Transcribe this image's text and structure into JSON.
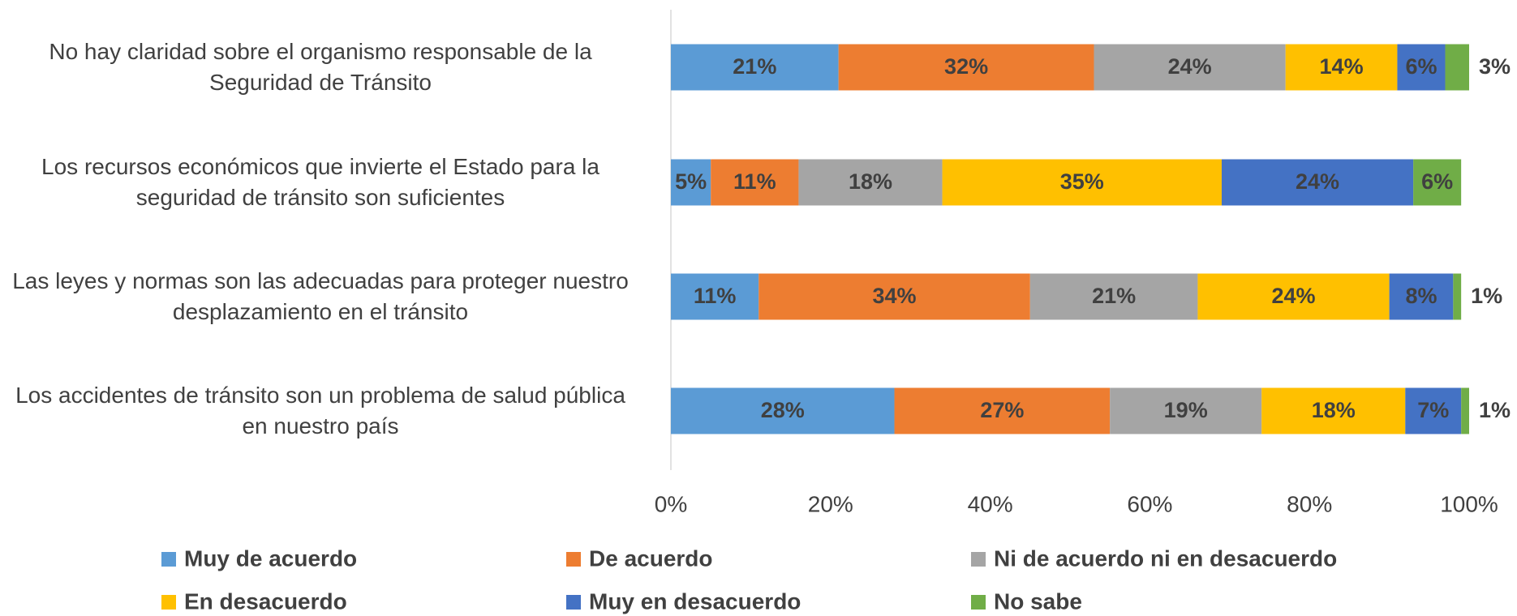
{
  "chart_data": {
    "type": "bar",
    "orientation": "horizontal",
    "stacked": true,
    "categories": [
      "No hay claridad sobre el organismo responsable de la Seguridad de Tránsito",
      "Los recursos económicos que invierte el Estado para la seguridad de tránsito son suficientes",
      "Las leyes y normas son las adecuadas para proteger nuestro desplazamiento en el tránsito",
      "Los accidentes de tránsito son un problema de salud pública en nuestro país"
    ],
    "series": [
      {
        "name": "Muy de acuerdo",
        "color": "#5b9bd5",
        "values": [
          21,
          5,
          11,
          28
        ],
        "value_labels": [
          "21%",
          "5%",
          "11%",
          "28%"
        ]
      },
      {
        "name": "De acuerdo",
        "color": "#ed7d31",
        "values": [
          32,
          11,
          34,
          27
        ],
        "value_labels": [
          "32%",
          "11%",
          "34%",
          "27%"
        ]
      },
      {
        "name": "Ni de acuerdo ni en desacuerdo",
        "color": "#a5a5a5",
        "values": [
          24,
          18,
          21,
          19
        ],
        "value_labels": [
          "24%",
          "18%",
          "21%",
          "19%"
        ]
      },
      {
        "name": "En desacuerdo",
        "color": "#ffc000",
        "values": [
          14,
          35,
          24,
          18
        ],
        "value_labels": [
          "14%",
          "35%",
          "24%",
          "18%"
        ]
      },
      {
        "name": "Muy en desacuerdo",
        "color": "#4472c4",
        "values": [
          6,
          24,
          8,
          7
        ],
        "value_labels": [
          "6%",
          "24%",
          "8%",
          "7%"
        ]
      },
      {
        "name": "No sabe",
        "color": "#70ad47",
        "values": [
          3,
          6,
          1,
          1
        ],
        "value_labels": [
          "3%",
          "6%",
          "1%",
          "1%"
        ]
      }
    ],
    "xlim": [
      0,
      100
    ],
    "xticks": [
      {
        "value": 0,
        "label": "0%"
      },
      {
        "value": 20,
        "label": "20%"
      },
      {
        "value": 40,
        "label": "40%"
      },
      {
        "value": 60,
        "label": "60%"
      },
      {
        "value": 80,
        "label": "80%"
      },
      {
        "value": 100,
        "label": "100%"
      }
    ],
    "legend": "bottom"
  }
}
